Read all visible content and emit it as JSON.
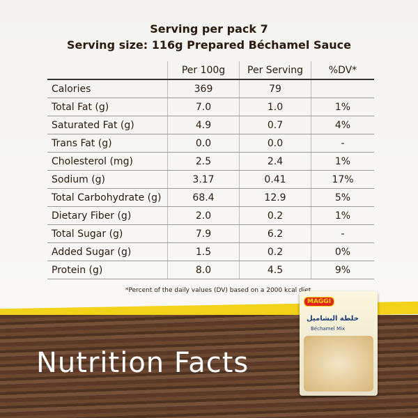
{
  "header": {
    "line1": "Serving per pack 7",
    "line2": "Serving size: 116g Prepared Béchamel Sauce"
  },
  "table": {
    "columns": [
      "Per 100g",
      "Per Serving",
      "%DV*"
    ],
    "rows": [
      [
        "Calories",
        "369",
        "79",
        ""
      ],
      [
        "Total Fat (g)",
        "7.0",
        "1.0",
        "1%"
      ],
      [
        "Saturated Fat (g)",
        "4.9",
        "0.7",
        "4%"
      ],
      [
        "Trans Fat (g)",
        "0.0",
        "0.0",
        "-"
      ],
      [
        "Cholesterol (mg)",
        "2.5",
        "2.4",
        "1%"
      ],
      [
        "Sodium (g)",
        "3.17",
        "0.41",
        "17%"
      ],
      [
        "Total Carbohydrate (g)",
        "68.4",
        "12.9",
        "5%"
      ],
      [
        "Dietary Fiber (g)",
        "2.0",
        "0.2",
        "1%"
      ],
      [
        "Total Sugar (g)",
        "7.9",
        "6.2",
        "-"
      ],
      [
        "Added Sugar (g)",
        "1.5",
        "0.2",
        "0%"
      ],
      [
        "Protein (g)",
        "8.0",
        "4.5",
        "9%"
      ]
    ]
  },
  "footnote": "*Percent of the daily values (DV) based on a 2000 kcal diet.",
  "title": "Nutrition Facts",
  "packet": {
    "brand": "MAGGI",
    "arabic": "خلطة البشاميل",
    "name": "Béchamel Mix"
  }
}
